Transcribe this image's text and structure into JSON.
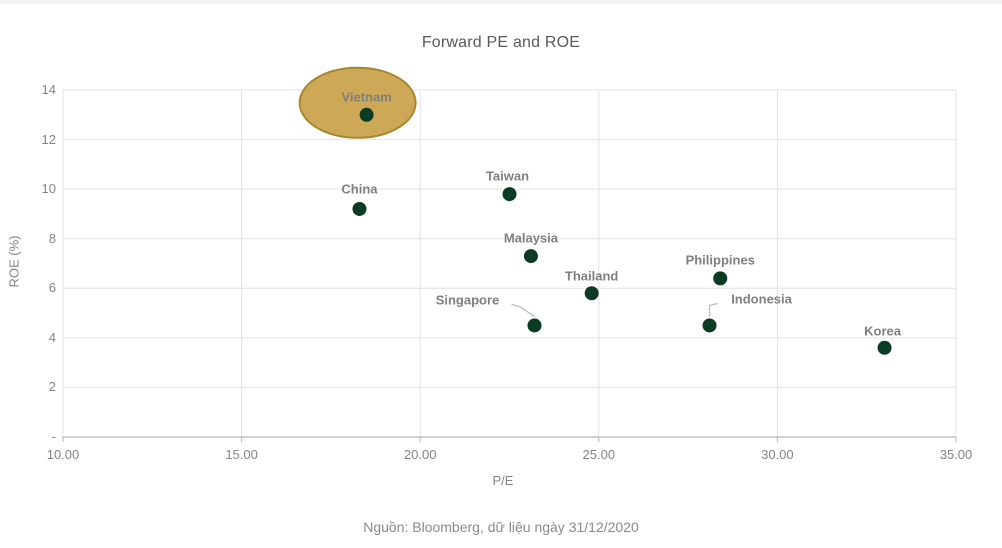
{
  "chart_data": {
    "type": "scatter",
    "title": "Forward PE and ROE",
    "xlabel": "P/E",
    "ylabel": "ROE (%)",
    "xlim": [
      10,
      35
    ],
    "ylim": [
      0,
      14
    ],
    "grid": true,
    "x_ticks": [
      {
        "value": 10,
        "label": "10.00"
      },
      {
        "value": 15,
        "label": "15.00"
      },
      {
        "value": 20,
        "label": "20.00"
      },
      {
        "value": 25,
        "label": "25.00"
      },
      {
        "value": 30,
        "label": "30.00"
      },
      {
        "value": 35,
        "label": "35.00"
      }
    ],
    "y_ticks": [
      {
        "value": 14,
        "label": "14"
      },
      {
        "value": 12,
        "label": "12"
      },
      {
        "value": 10,
        "label": "10"
      },
      {
        "value": 8,
        "label": "8"
      },
      {
        "value": 6,
        "label": "6"
      },
      {
        "value": 4,
        "label": "4"
      },
      {
        "value": 2,
        "label": "2"
      },
      {
        "value": 0,
        "label": "-"
      }
    ],
    "points": [
      {
        "name": "Vietnam",
        "pe": 18.5,
        "roe": 13.0,
        "highlighted": true,
        "label_offset": [
          0,
          -18
        ]
      },
      {
        "name": "China",
        "pe": 18.3,
        "roe": 9.2,
        "label_offset": [
          0,
          -20
        ]
      },
      {
        "name": "Taiwan",
        "pe": 22.5,
        "roe": 9.8,
        "label_offset": [
          -2,
          -18
        ]
      },
      {
        "name": "Malaysia",
        "pe": 23.1,
        "roe": 7.3,
        "label_offset": [
          0,
          -18
        ]
      },
      {
        "name": "Thailand",
        "pe": 24.8,
        "roe": 5.8,
        "label_offset": [
          0,
          -17
        ]
      },
      {
        "name": "Singapore",
        "pe": 23.2,
        "roe": 4.5,
        "label_offset": [
          -67,
          -25
        ],
        "leader": true
      },
      {
        "name": "Philippines",
        "pe": 28.4,
        "roe": 6.4,
        "label_offset": [
          0,
          -18
        ]
      },
      {
        "name": "Indonesia",
        "pe": 28.1,
        "roe": 4.5,
        "label_offset": [
          52,
          -26
        ],
        "leader": true
      },
      {
        "name": "Korea",
        "pe": 33.0,
        "roe": 3.6,
        "label_offset": [
          -2,
          -17
        ]
      }
    ],
    "highlight_ellipse": {
      "target": "Vietnam",
      "offset": [
        -9,
        -12
      ],
      "rx": 58,
      "ry": 35,
      "fill": "#C9A24A",
      "stroke": "#A8862F"
    },
    "colors": {
      "dot": "#0C3B23",
      "point_label": "#7f7f7f",
      "title": "#595959",
      "axis_text": "#848484",
      "grid": "#e2e2e2",
      "axis_line": "#b3b3b3",
      "leader": "#bfbfbf"
    },
    "legend": null
  },
  "footer": {
    "source": "Nguồn: Bloomberg, dữ liệu ngày 31/12/2020"
  }
}
